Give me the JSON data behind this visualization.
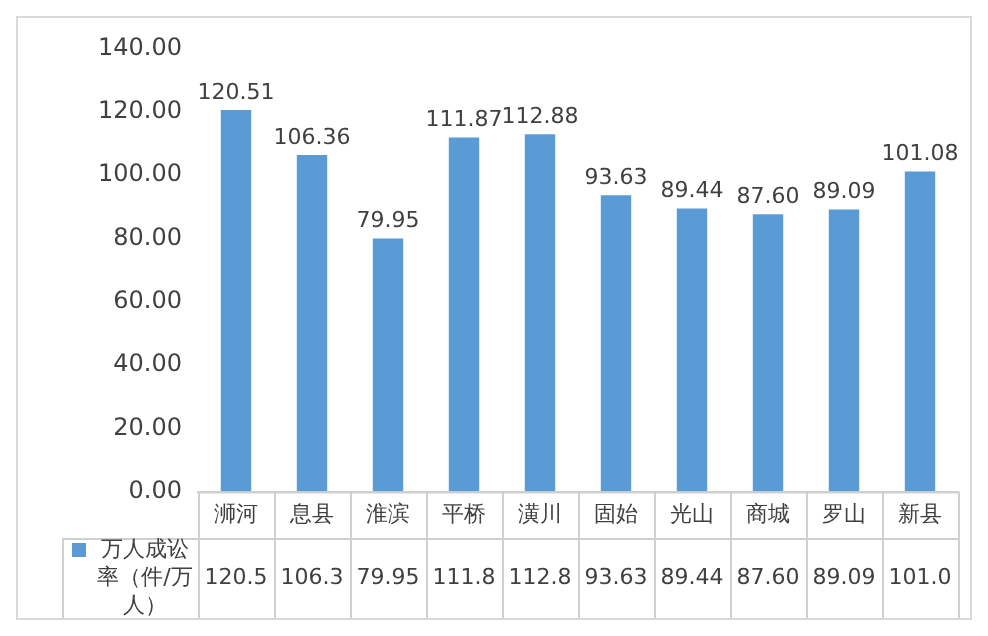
{
  "chart_data": {
    "type": "bar",
    "categories": [
      "浉河",
      "息县",
      "淮滨",
      "平桥",
      "潢川",
      "固始",
      "光山",
      "商城",
      "罗山",
      "新县"
    ],
    "series": [
      {
        "name": "万人成讼率（件/万人）",
        "color": "#5b9bd5",
        "values": [
          120.51,
          106.36,
          79.95,
          111.87,
          112.88,
          93.63,
          89.44,
          87.6,
          89.09,
          101.08
        ],
        "value_labels": [
          "120.51",
          "106.36",
          "79.95",
          "111.87",
          "112.88",
          "93.63",
          "89.44",
          "87.60",
          "89.09",
          "101.08"
        ]
      }
    ],
    "ylim": [
      0,
      140
    ],
    "yticks": [
      {
        "value": 0,
        "label": "0.00"
      },
      {
        "value": 20,
        "label": "20.00"
      },
      {
        "value": 40,
        "label": "40.00"
      },
      {
        "value": 60,
        "label": "60.00"
      },
      {
        "value": 80,
        "label": "80.00"
      },
      {
        "value": 100,
        "label": "100.00"
      },
      {
        "value": 120,
        "label": "120.00"
      },
      {
        "value": 140,
        "label": "140.00"
      }
    ],
    "grid": false,
    "legend": "bottom left",
    "annotations": [
      "120.5",
      "106.3",
      "79.95",
      "111.8",
      "112.8",
      "93.63",
      "89.44",
      "87.60",
      "89.09",
      "101.0"
    ]
  }
}
